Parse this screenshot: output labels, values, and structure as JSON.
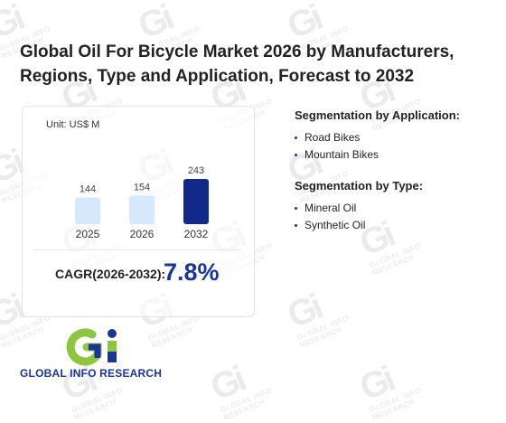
{
  "header": {
    "title": "Global Oil For Bicycle Market 2026 by Manufacturers, Regions, Type and Application, Forecast to 2032"
  },
  "chart": {
    "unit": "Unit: US$ M",
    "cagr_label": "CAGR(2026-2032):",
    "cagr_value": "7.8%"
  },
  "chart_data": {
    "type": "bar",
    "categories": [
      "2025",
      "2026",
      "2032"
    ],
    "values": [
      144,
      154,
      243
    ],
    "title": "",
    "xlabel": "",
    "ylabel": "",
    "unit": "US$ M",
    "highlight_category": "2032",
    "colors": {
      "default_bar": "#d6e8fb",
      "highlight_bar": "#12298a"
    },
    "grid": false,
    "legend": "none"
  },
  "segmentation": {
    "application": {
      "heading": "Segmentation by Application:",
      "items": [
        "Road Bikes",
        "Mountain Bikes"
      ]
    },
    "type": {
      "heading": "Segmentation by Type:",
      "items": [
        "Mineral Oil",
        "Synthetic Oil"
      ]
    }
  },
  "brand": {
    "name": "GLOBAL INFO RESEARCH",
    "logo_letters": "Gi"
  },
  "watermark": {
    "logo_letters": "Gi",
    "text": "GLOBAL INFO RESEARCH"
  },
  "colors": {
    "accent": "#1a3594",
    "logo_green": "#8cc63f",
    "logo_blue": "#1a3594"
  }
}
